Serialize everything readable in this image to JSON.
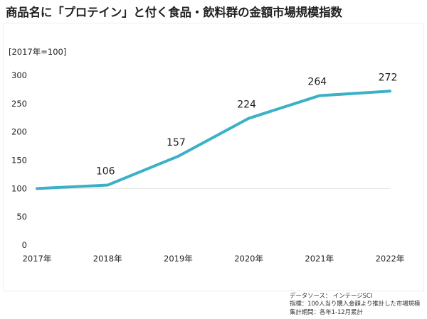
{
  "title": "商品名に「プロテイン」と付く食品・飲料群の金額市場規模指数",
  "chart_data": {
    "type": "line",
    "unit_label": "[2017年=100]",
    "categories": [
      "2017年",
      "2018年",
      "2019年",
      "2020年",
      "2021年",
      "2022年"
    ],
    "series": [
      {
        "values": [
          100,
          106,
          157,
          224,
          264,
          272
        ],
        "color": "#3ab1c6"
      }
    ],
    "data_labels": [
      "106",
      "157",
      "224",
      "264",
      "272"
    ],
    "y_ticks": [
      0,
      50,
      100,
      150,
      200,
      250,
      300
    ],
    "ylim": [
      0,
      300
    ],
    "reference_line": 100,
    "grid": false
  },
  "notes": [
    "データソース： インテージSCI",
    "指標：100人当り購入金額より推計した市場規模",
    "集計期間：各年1-12月累計"
  ]
}
